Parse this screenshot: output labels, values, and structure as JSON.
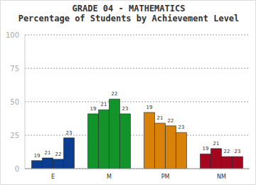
{
  "chart_data": {
    "type": "bar",
    "title": "GRADE 04 - MATHEMATICS",
    "subtitle": "Percentage of Students by Achievement Level",
    "categories": [
      "E",
      "M",
      "PM",
      "NM"
    ],
    "series": [
      {
        "name": "19",
        "values": [
          6,
          41,
          42,
          11
        ]
      },
      {
        "name": "21",
        "values": [
          8,
          44,
          34,
          15
        ]
      },
      {
        "name": "22",
        "values": [
          7,
          52,
          32,
          9
        ]
      },
      {
        "name": "23",
        "values": [
          23,
          41,
          27,
          9
        ]
      }
    ],
    "colors": [
      "#0b3d91",
      "#13942a",
      "#d8820a",
      "#a3071f"
    ],
    "ylim": [
      0,
      100
    ],
    "yticks": [
      0,
      25,
      50,
      75,
      100
    ],
    "grid": true
  }
}
